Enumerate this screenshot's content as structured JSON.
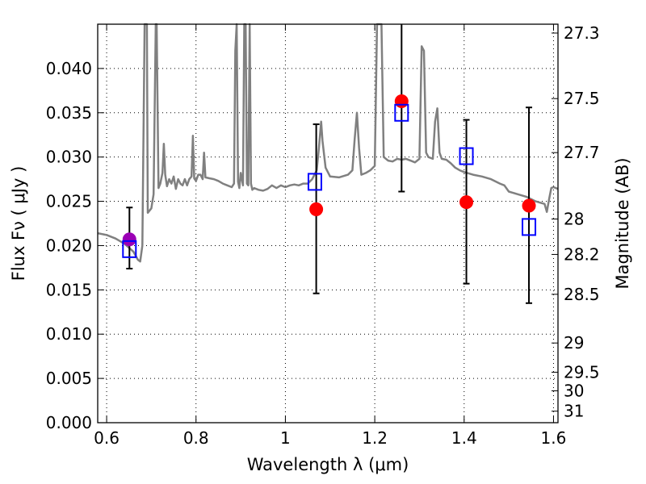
{
  "chart_data": {
    "type": "scatter",
    "xlabel": "Wavelength  λ (μm)",
    "ylabel": "Flux  Fν  ( μJy )",
    "ylabel_right": "Magnitude (AB)",
    "xlim": [
      0.58,
      1.61
    ],
    "ylim": [
      0.0,
      0.045
    ],
    "grid": true,
    "x_ticks": [
      {
        "value": 0.6,
        "label": "0.6"
      },
      {
        "value": 0.8,
        "label": "0.8"
      },
      {
        "value": 1.0,
        "label": "1"
      },
      {
        "value": 1.2,
        "label": "1.2"
      },
      {
        "value": 1.4,
        "label": "1.4"
      },
      {
        "value": 1.6,
        "label": "1.6"
      }
    ],
    "y_ticks": [
      {
        "value": 0.0,
        "label": "0.000"
      },
      {
        "value": 0.005,
        "label": "0.005"
      },
      {
        "value": 0.01,
        "label": "0.010"
      },
      {
        "value": 0.015,
        "label": "0.015"
      },
      {
        "value": 0.02,
        "label": "0.020"
      },
      {
        "value": 0.025,
        "label": "0.025"
      },
      {
        "value": 0.03,
        "label": "0.030"
      },
      {
        "value": 0.035,
        "label": "0.035"
      },
      {
        "value": 0.04,
        "label": "0.040"
      }
    ],
    "right_ticks": [
      {
        "flux": 0.044,
        "label": "27.3"
      },
      {
        "flux": 0.0366,
        "label": "27.5"
      },
      {
        "flux": 0.0305,
        "label": "27.7"
      },
      {
        "flux": 0.023,
        "label": "28"
      },
      {
        "flux": 0.019,
        "label": "28.2"
      },
      {
        "flux": 0.0145,
        "label": "28.5"
      },
      {
        "flux": 0.009,
        "label": "29"
      },
      {
        "flux": 0.0057,
        "label": "29.5"
      },
      {
        "flux": 0.0036,
        "label": "30"
      },
      {
        "flux": 0.0013,
        "label": "31"
      }
    ],
    "observed": [
      {
        "x": 0.651,
        "y": 0.0207,
        "yerr_low": 0.0174,
        "yerr_high": 0.0243,
        "color": "#9B00B5"
      },
      {
        "x": 1.069,
        "y": 0.0241,
        "yerr_low": 0.0146,
        "yerr_high": 0.0337,
        "color": "#FF0000"
      },
      {
        "x": 1.26,
        "y": 0.0363,
        "yerr_low": 0.0261,
        "yerr_high": 0.045,
        "color": "#FF0000"
      },
      {
        "x": 1.405,
        "y": 0.0249,
        "yerr_low": 0.0157,
        "yerr_high": 0.0342,
        "color": "#FF0000"
      },
      {
        "x": 1.545,
        "y": 0.0245,
        "yerr_low": 0.0135,
        "yerr_high": 0.0356,
        "color": "#FF0000"
      }
    ],
    "model_points": [
      {
        "x": 0.651,
        "y": 0.0196
      },
      {
        "x": 1.066,
        "y": 0.0272
      },
      {
        "x": 1.26,
        "y": 0.035
      },
      {
        "x": 1.405,
        "y": 0.0301
      },
      {
        "x": 1.545,
        "y": 0.0221
      }
    ],
    "model_spectrum": [
      [
        0.58,
        0.0214
      ],
      [
        0.6,
        0.0212
      ],
      [
        0.62,
        0.0208
      ],
      [
        0.64,
        0.0202
      ],
      [
        0.66,
        0.0193
      ],
      [
        0.67,
        0.0184
      ],
      [
        0.675,
        0.0182
      ],
      [
        0.68,
        0.02
      ],
      [
        0.685,
        0.045
      ],
      [
        0.69,
        0.045
      ],
      [
        0.692,
        0.0237
      ],
      [
        0.7,
        0.0242
      ],
      [
        0.705,
        0.0258
      ],
      [
        0.71,
        0.045
      ],
      [
        0.712,
        0.045
      ],
      [
        0.716,
        0.0265
      ],
      [
        0.72,
        0.027
      ],
      [
        0.725,
        0.0282
      ],
      [
        0.728,
        0.0315
      ],
      [
        0.731,
        0.028
      ],
      [
        0.735,
        0.0267
      ],
      [
        0.74,
        0.0275
      ],
      [
        0.745,
        0.027
      ],
      [
        0.75,
        0.0278
      ],
      [
        0.755,
        0.0264
      ],
      [
        0.76,
        0.0275
      ],
      [
        0.765,
        0.027
      ],
      [
        0.77,
        0.0268
      ],
      [
        0.775,
        0.0275
      ],
      [
        0.78,
        0.0268
      ],
      [
        0.785,
        0.0275
      ],
      [
        0.79,
        0.0278
      ],
      [
        0.793,
        0.0324
      ],
      [
        0.796,
        0.0276
      ],
      [
        0.8,
        0.0273
      ],
      [
        0.805,
        0.028
      ],
      [
        0.81,
        0.028
      ],
      [
        0.815,
        0.0275
      ],
      [
        0.818,
        0.0305
      ],
      [
        0.821,
        0.0277
      ],
      [
        0.83,
        0.0276
      ],
      [
        0.84,
        0.0275
      ],
      [
        0.85,
        0.0273
      ],
      [
        0.86,
        0.027
      ],
      [
        0.87,
        0.0268
      ],
      [
        0.88,
        0.0266
      ],
      [
        0.885,
        0.027
      ],
      [
        0.888,
        0.042
      ],
      [
        0.891,
        0.045
      ],
      [
        0.894,
        0.0272
      ],
      [
        0.897,
        0.0265
      ],
      [
        0.9,
        0.0282
      ],
      [
        0.905,
        0.0268
      ],
      [
        0.908,
        0.045
      ],
      [
        0.911,
        0.045
      ],
      [
        0.914,
        0.027
      ],
      [
        0.917,
        0.0268
      ],
      [
        0.92,
        0.045
      ],
      [
        0.923,
        0.027
      ],
      [
        0.926,
        0.0263
      ],
      [
        0.93,
        0.0265
      ],
      [
        0.94,
        0.0263
      ],
      [
        0.95,
        0.0262
      ],
      [
        0.96,
        0.0264
      ],
      [
        0.97,
        0.0268
      ],
      [
        0.98,
        0.0265
      ],
      [
        0.99,
        0.0268
      ],
      [
        1.0,
        0.0266
      ],
      [
        1.01,
        0.0268
      ],
      [
        1.02,
        0.0269
      ],
      [
        1.03,
        0.0268
      ],
      [
        1.04,
        0.027
      ],
      [
        1.05,
        0.027
      ],
      [
        1.06,
        0.0275
      ],
      [
        1.07,
        0.0285
      ],
      [
        1.075,
        0.031
      ],
      [
        1.08,
        0.034
      ],
      [
        1.083,
        0.0318
      ],
      [
        1.09,
        0.0288
      ],
      [
        1.1,
        0.0278
      ],
      [
        1.12,
        0.0277
      ],
      [
        1.14,
        0.028
      ],
      [
        1.15,
        0.0285
      ],
      [
        1.155,
        0.032
      ],
      [
        1.16,
        0.035
      ],
      [
        1.165,
        0.031
      ],
      [
        1.17,
        0.028
      ],
      [
        1.18,
        0.0282
      ],
      [
        1.19,
        0.0285
      ],
      [
        1.2,
        0.029
      ],
      [
        1.205,
        0.045
      ],
      [
        1.215,
        0.045
      ],
      [
        1.22,
        0.03
      ],
      [
        1.23,
        0.0296
      ],
      [
        1.24,
        0.0295
      ],
      [
        1.25,
        0.0298
      ],
      [
        1.26,
        0.0297
      ],
      [
        1.27,
        0.0298
      ],
      [
        1.28,
        0.0296
      ],
      [
        1.29,
        0.0294
      ],
      [
        1.3,
        0.0298
      ],
      [
        1.305,
        0.0425
      ],
      [
        1.31,
        0.042
      ],
      [
        1.315,
        0.0305
      ],
      [
        1.32,
        0.03
      ],
      [
        1.33,
        0.0298
      ],
      [
        1.335,
        0.034
      ],
      [
        1.34,
        0.0355
      ],
      [
        1.345,
        0.0305
      ],
      [
        1.35,
        0.0298
      ],
      [
        1.36,
        0.0297
      ],
      [
        1.37,
        0.0293
      ],
      [
        1.38,
        0.0288
      ],
      [
        1.39,
        0.0285
      ],
      [
        1.4,
        0.0283
      ],
      [
        1.42,
        0.028
      ],
      [
        1.44,
        0.0278
      ],
      [
        1.46,
        0.0275
      ],
      [
        1.48,
        0.027
      ],
      [
        1.49,
        0.0268
      ],
      [
        1.5,
        0.0261
      ],
      [
        1.52,
        0.0258
      ],
      [
        1.54,
        0.0255
      ],
      [
        1.56,
        0.025
      ],
      [
        1.58,
        0.0247
      ],
      [
        1.585,
        0.0238
      ],
      [
        1.59,
        0.0252
      ],
      [
        1.595,
        0.0265
      ],
      [
        1.6,
        0.0266
      ],
      [
        1.61,
        0.0264
      ]
    ],
    "colors": {
      "spectrum": "#808080",
      "model_points": "#0000FF",
      "errorbars": "#000000"
    }
  }
}
